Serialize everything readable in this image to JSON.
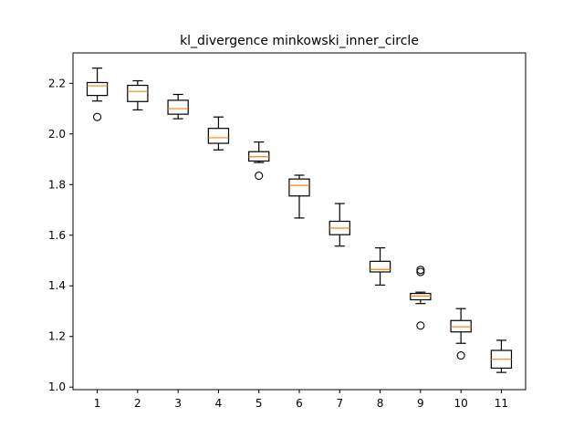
{
  "chart_data": {
    "type": "box",
    "title": "kl_divergence minkowski_inner_circle",
    "xlabel": "",
    "ylabel": "",
    "categories": [
      "1",
      "2",
      "3",
      "4",
      "5",
      "6",
      "7",
      "8",
      "9",
      "10",
      "11"
    ],
    "ylim": [
      0.99,
      2.32
    ],
    "yticks": [
      "1.0",
      "1.2",
      "1.4",
      "1.6",
      "1.8",
      "2.0",
      "2.2"
    ],
    "grid": false,
    "legend": "none",
    "colors": {
      "box": "#000000",
      "median": "#ff7f0e",
      "background": "#ffffff"
    },
    "boxes": [
      {
        "label": "1",
        "whislo": 2.13,
        "q1": 2.152,
        "med": 2.19,
        "q3": 2.203,
        "whishi": 2.26,
        "fliers": [
          2.067
        ]
      },
      {
        "label": "2",
        "whislo": 2.095,
        "q1": 2.128,
        "med": 2.168,
        "q3": 2.192,
        "whishi": 2.21,
        "fliers": []
      },
      {
        "label": "3",
        "whislo": 2.06,
        "q1": 2.078,
        "med": 2.1,
        "q3": 2.133,
        "whishi": 2.156,
        "fliers": []
      },
      {
        "label": "4",
        "whislo": 1.937,
        "q1": 1.963,
        "med": 1.985,
        "q3": 2.022,
        "whishi": 2.067,
        "fliers": []
      },
      {
        "label": "5",
        "whislo": 1.887,
        "q1": 1.893,
        "med": 1.91,
        "q3": 1.93,
        "whishi": 1.968,
        "fliers": [
          1.835
        ]
      },
      {
        "label": "6",
        "whislo": 1.668,
        "q1": 1.755,
        "med": 1.797,
        "q3": 1.822,
        "whishi": 1.837,
        "fliers": []
      },
      {
        "label": "7",
        "whislo": 1.557,
        "q1": 1.602,
        "med": 1.628,
        "q3": 1.655,
        "whishi": 1.725,
        "fliers": []
      },
      {
        "label": "8",
        "whislo": 1.403,
        "q1": 1.455,
        "med": 1.465,
        "q3": 1.497,
        "whishi": 1.55,
        "fliers": []
      },
      {
        "label": "9",
        "whislo": 1.33,
        "q1": 1.345,
        "med": 1.36,
        "q3": 1.37,
        "whishi": 1.375,
        "fliers": [
          1.243,
          1.455,
          1.463
        ]
      },
      {
        "label": "10",
        "whislo": 1.173,
        "q1": 1.218,
        "med": 1.238,
        "q3": 1.263,
        "whishi": 1.31,
        "fliers": [
          1.125
        ]
      },
      {
        "label": "11",
        "whislo": 1.058,
        "q1": 1.075,
        "med": 1.11,
        "q3": 1.145,
        "whishi": 1.185,
        "fliers": []
      }
    ]
  }
}
